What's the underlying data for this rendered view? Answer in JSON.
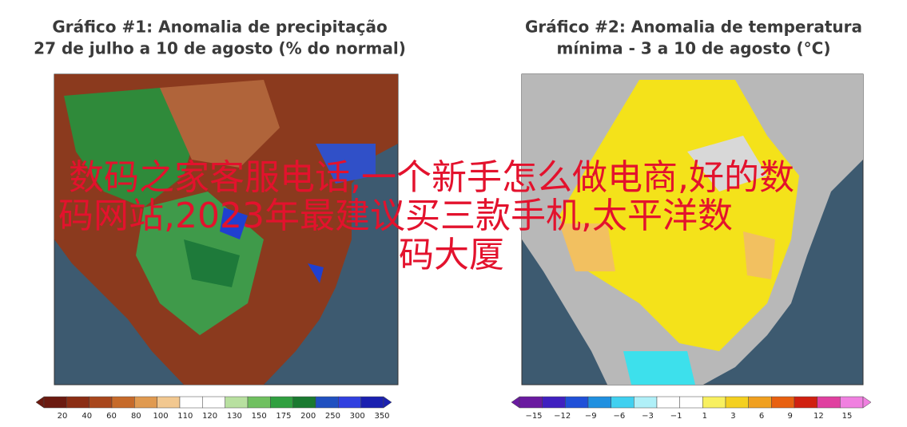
{
  "panels": [
    {
      "title_line1": "Gráfico #1: Anomalia de precipitação",
      "title_line2": "27 de julho a 10 de agosto (% do normal)",
      "colorbar_labels": [
        "20",
        "40",
        "60",
        "80",
        "100",
        "110",
        "120",
        "130",
        "150",
        "175",
        "200",
        "250",
        "300",
        "350"
      ]
    },
    {
      "title_line1": "Gráfico #2: Anomalia de temperatura",
      "title_line2": "mínima - 3 a 10 de agosto (°C)",
      "colorbar_labels": [
        "−15",
        "−12",
        "−9",
        "−6",
        "−3",
        "−1",
        "1",
        "3",
        "6",
        "9",
        "12",
        "15"
      ]
    }
  ],
  "overlay": {
    "lines": [
      "数码之家客服电话,一个新手怎么做电商,好的数",
      "码网站,2023年最建议买三款手机,太平洋数",
      "码大厦"
    ]
  }
}
